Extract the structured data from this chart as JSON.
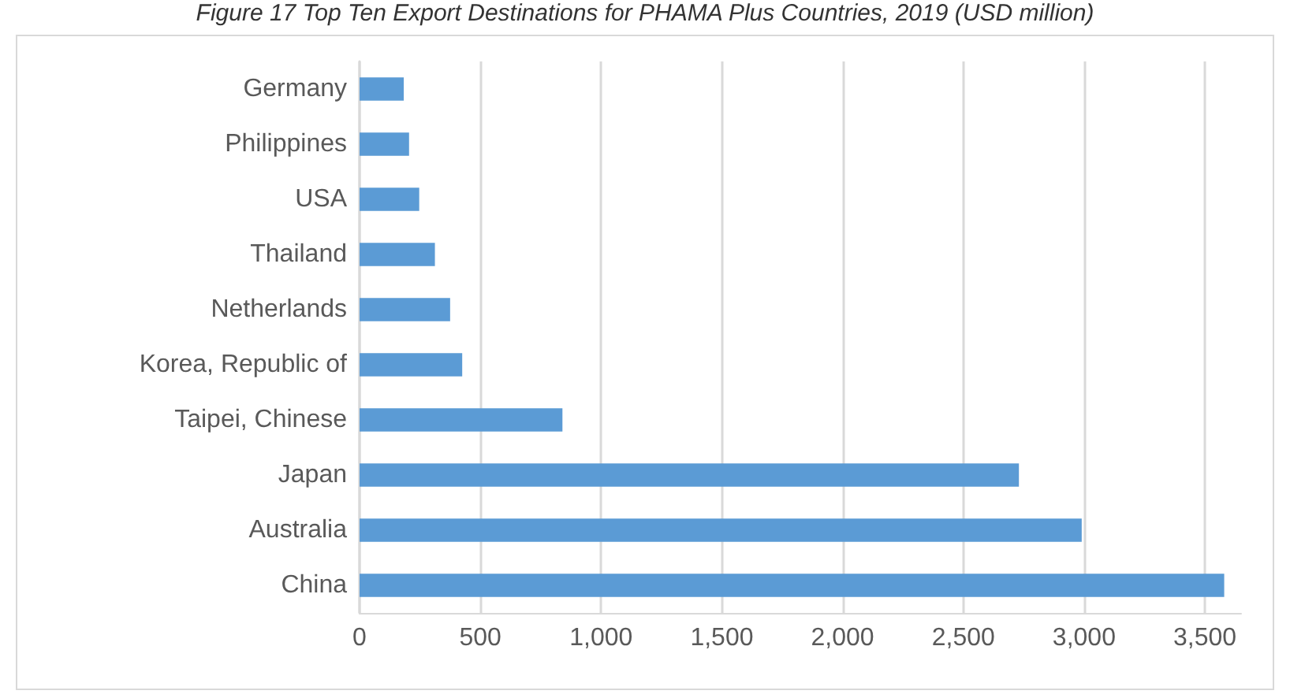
{
  "chart_data": {
    "type": "bar",
    "orientation": "horizontal",
    "title": "Figure 17 Top Ten Export Destinations for PHAMA Plus Countries, 2019 (USD million)",
    "categories": [
      "Germany",
      "Philippines",
      "USA",
      "Thailand",
      "Netherlands",
      "Korea, Republic of",
      "Taipei, Chinese",
      "Japan",
      "Australia",
      "China"
    ],
    "values": [
      183,
      205,
      247,
      312,
      375,
      425,
      840,
      2730,
      2990,
      3580
    ],
    "color": "#5b9bd5",
    "xlim": [
      0,
      3650
    ],
    "xticks": [
      0,
      500,
      {
        "value": 1000,
        "label": "1,000"
      },
      {
        "value": 1500,
        "label": "1,500"
      },
      {
        "value": 2000,
        "label": "2,000"
      },
      {
        "value": 2500,
        "label": "2,500"
      },
      {
        "value": 3000,
        "label": "3,000"
      },
      {
        "value": 3500,
        "label": "3,500"
      }
    ],
    "grid": "x"
  }
}
